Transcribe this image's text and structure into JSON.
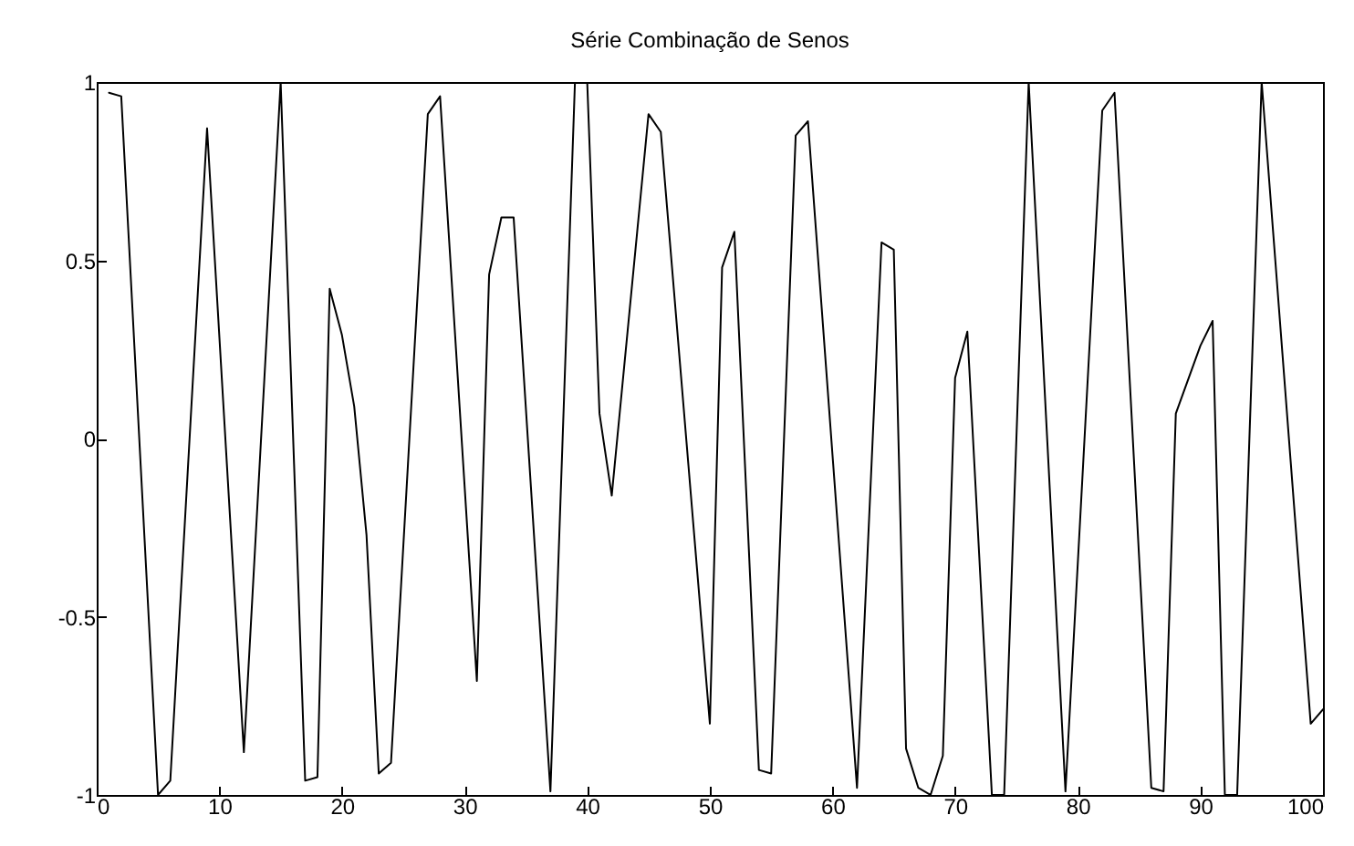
{
  "chart_data": {
    "type": "line",
    "title": "Série Combinação de Senos",
    "x": [
      1,
      2,
      5,
      6,
      9,
      12,
      15,
      17,
      18,
      19,
      20,
      21,
      22,
      23,
      24,
      27,
      28,
      31,
      32,
      33,
      34,
      37,
      39,
      40,
      41,
      42,
      45,
      46,
      50,
      51,
      52,
      54,
      55,
      57,
      58,
      62,
      64,
      65,
      66,
      67,
      68,
      69,
      70,
      71,
      73,
      74,
      76,
      79,
      82,
      83,
      86,
      87,
      88,
      90,
      91,
      92,
      93,
      95,
      99,
      100
    ],
    "series": [
      {
        "color": "#000000",
        "values": [
          0.97,
          0.96,
          -1.0,
          -0.96,
          0.87,
          -0.88,
          1.0,
          -0.96,
          -0.95,
          0.42,
          0.29,
          0.09,
          -0.27,
          -0.94,
          -0.91,
          0.91,
          0.96,
          -0.68,
          0.46,
          0.62,
          0.62,
          -0.99,
          1.0,
          1.0,
          0.07,
          -0.16,
          0.91,
          0.86,
          -0.8,
          0.48,
          0.58,
          -0.93,
          -0.94,
          0.85,
          0.89,
          -0.98,
          0.55,
          0.53,
          -0.87,
          -0.98,
          -1.0,
          -0.89,
          0.17,
          0.3,
          -1.0,
          -1.0,
          1.0,
          -0.99,
          0.92,
          0.97,
          -0.98,
          -0.99,
          0.07,
          0.26,
          0.33,
          -1.0,
          -1.0,
          1.0,
          -0.8,
          -0.76
        ]
      }
    ],
    "xlim": [
      0,
      100
    ],
    "xticks": [
      0,
      10,
      20,
      30,
      40,
      50,
      60,
      70,
      80,
      90,
      100
    ],
    "ylim": [
      -1,
      1
    ],
    "yticks": [
      -1,
      -0.5,
      0,
      0.5,
      1
    ],
    "grid": false,
    "legend": false,
    "marker": "none",
    "line_style": "solid"
  }
}
